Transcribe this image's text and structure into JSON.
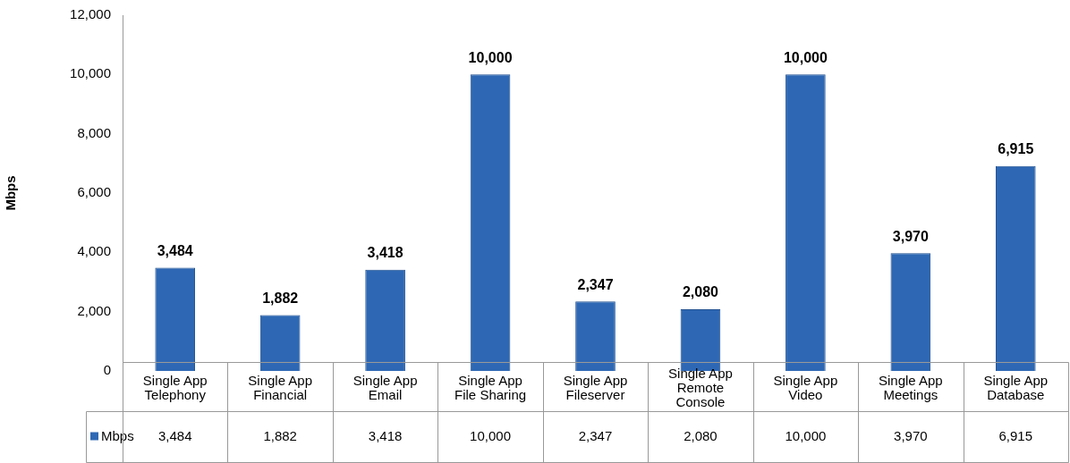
{
  "chart_data": {
    "type": "bar",
    "ylabel": "Mbps",
    "categories": [
      "Single App Telephony",
      "Single App Financial",
      "Single App Email",
      "Single App File Sharing",
      "Single App Fileserver",
      "Single App Remote Console",
      "Single App Video",
      "Single App Meetings",
      "Single App Database"
    ],
    "series": [
      {
        "name": "Mbps",
        "color": "#2e68b4",
        "values": [
          3484,
          1882,
          3418,
          10000,
          2347,
          2080,
          10000,
          3970,
          6915
        ]
      }
    ],
    "value_labels": [
      "3,484",
      "1,882",
      "3,418",
      "10,000",
      "2,347",
      "2,080",
      "10,000",
      "3,970",
      "6,915"
    ],
    "ylim": [
      0,
      12000
    ],
    "yticks": [
      0,
      {
        "value": 2000,
        "label": "2,000"
      },
      {
        "value": 4000,
        "label": "4,000"
      },
      {
        "value": 6000,
        "label": "6,000"
      },
      {
        "value": 8000,
        "label": "8,000"
      },
      {
        "value": 10000,
        "label": "10,000"
      },
      {
        "value": 12000,
        "label": "12,000"
      }
    ],
    "grid": false,
    "legend": "bottom left"
  }
}
